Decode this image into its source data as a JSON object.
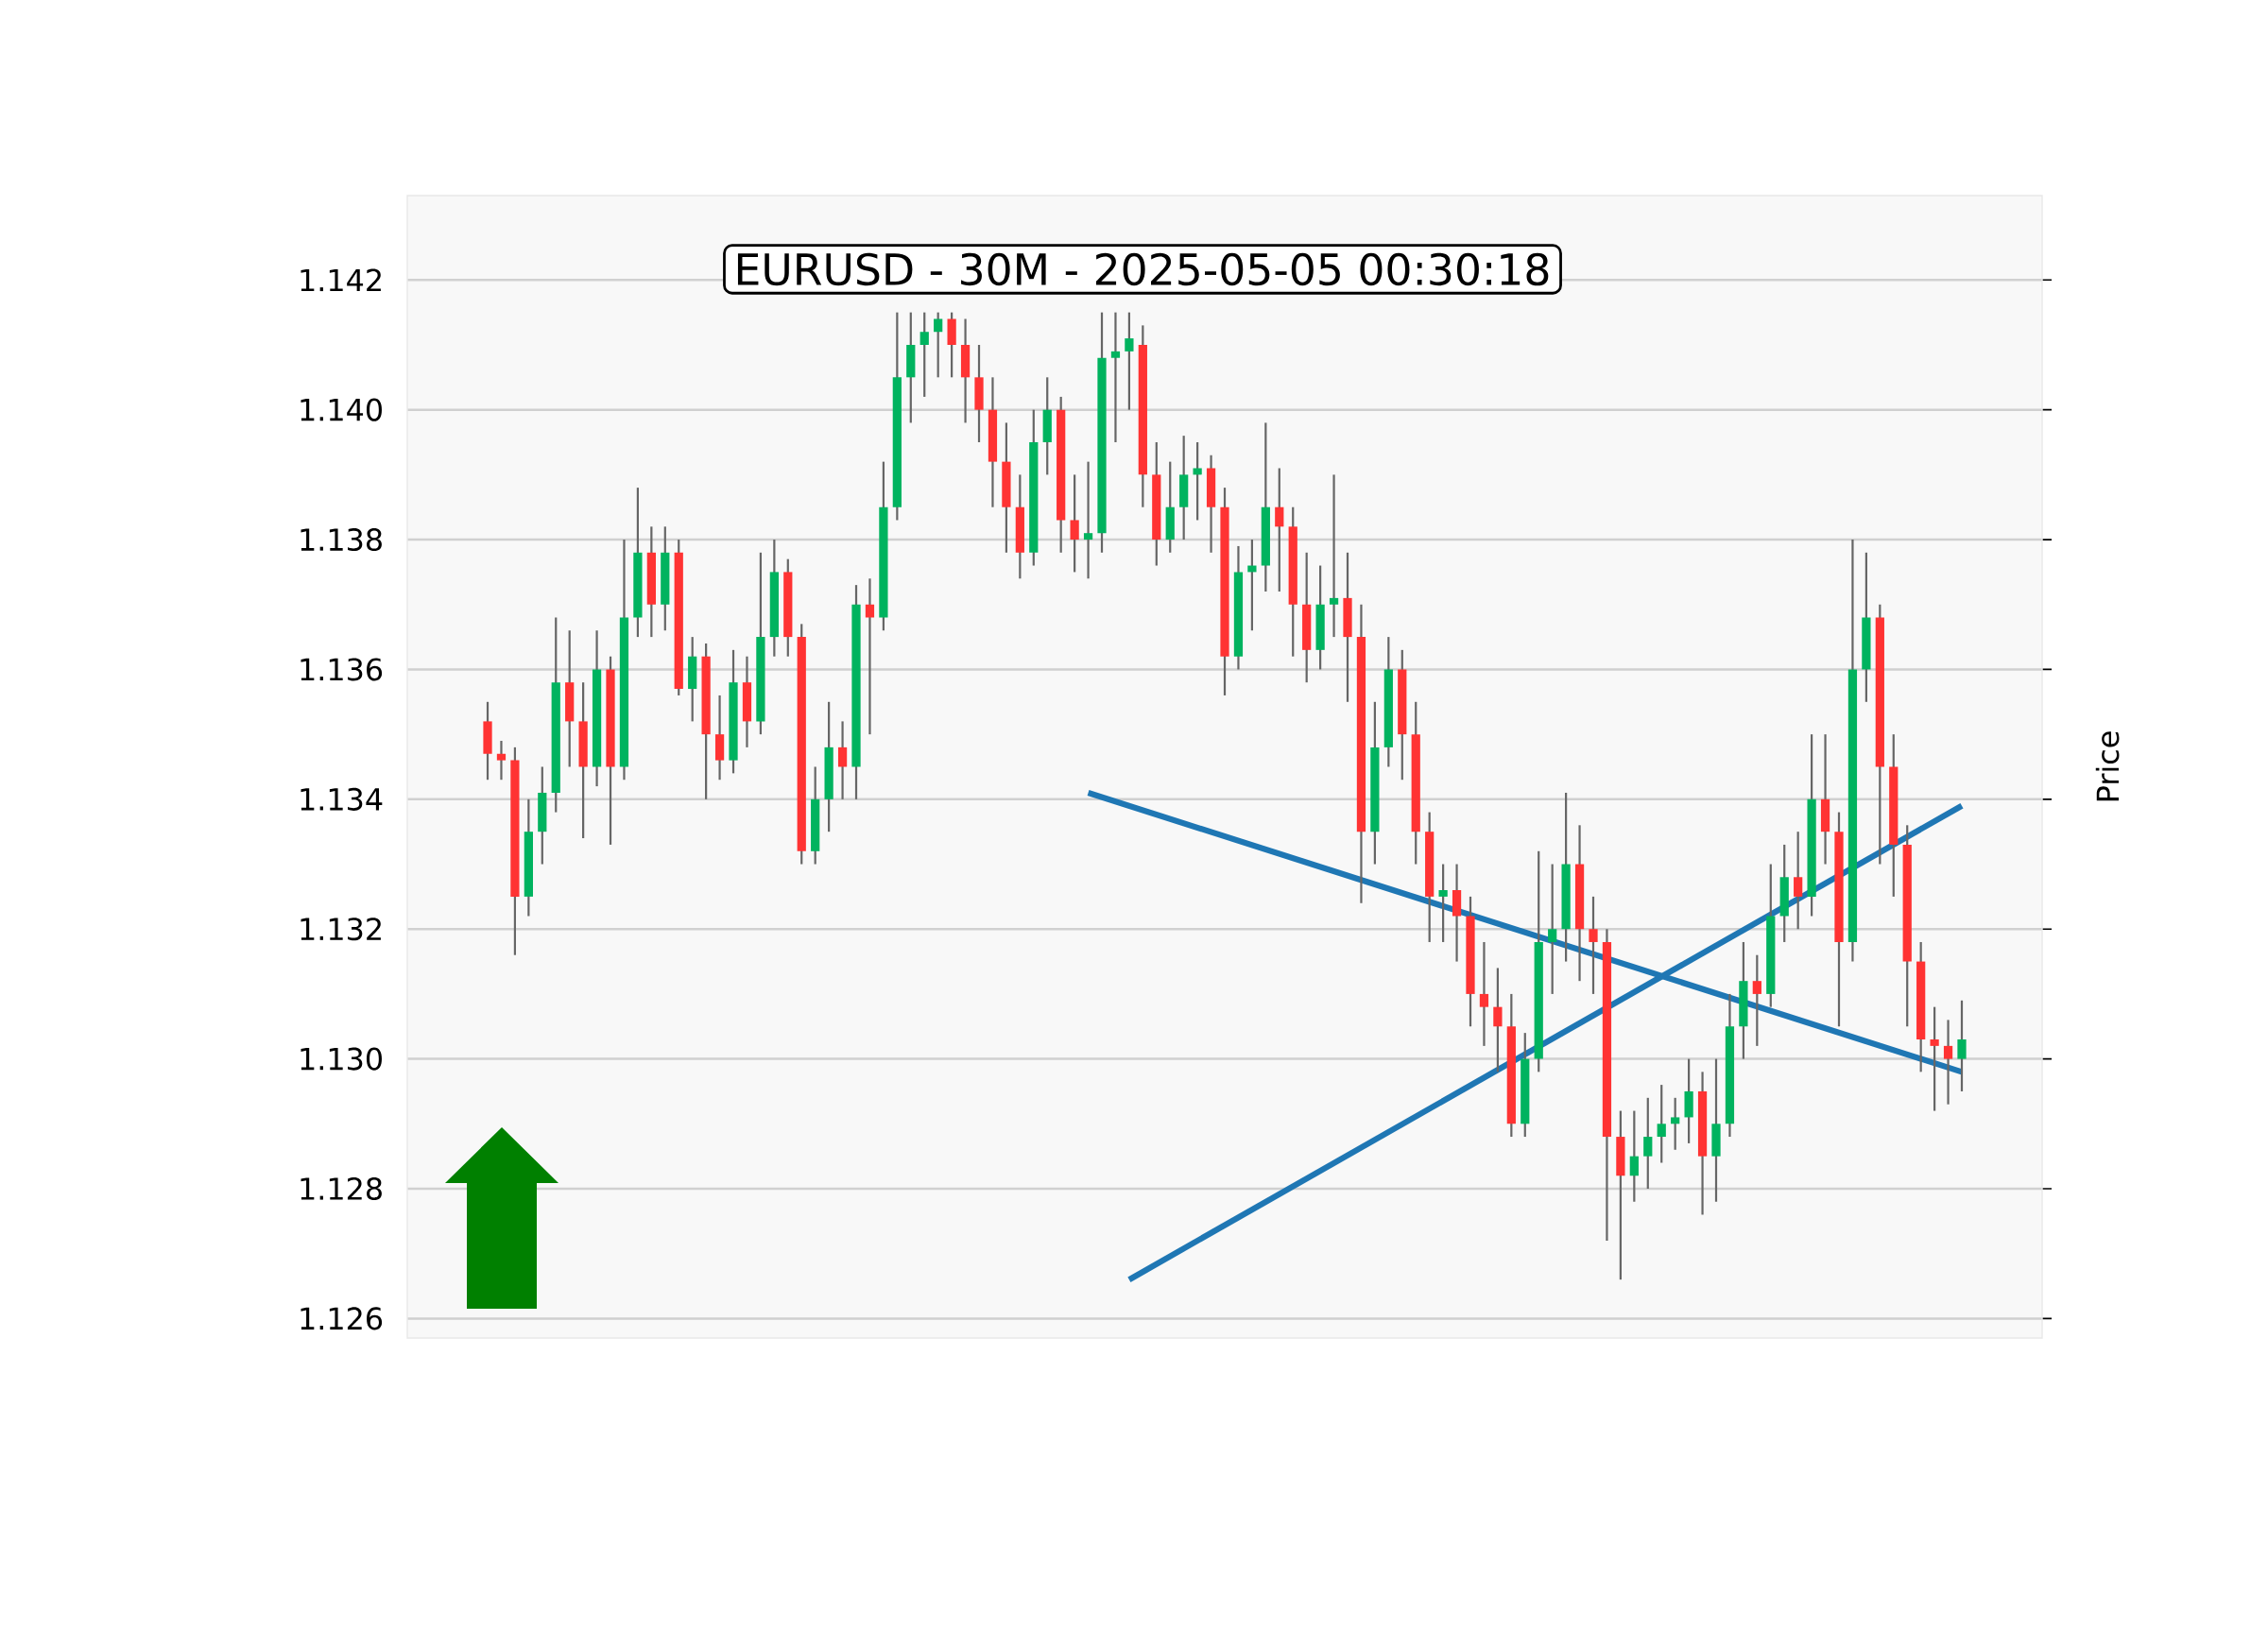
{
  "chart_data": {
    "type": "candlestick",
    "title": "EURUSD - 30M - 2025-05-05 00:30:18",
    "ylabel": "Price",
    "categories": [
      null,
      null,
      null,
      null,
      null,
      null,
      null,
      null,
      null,
      null,
      null,
      null,
      null,
      null,
      null,
      null,
      null,
      null,
      null,
      null,
      null,
      null,
      null,
      null,
      null,
      null,
      null,
      null,
      null,
      null,
      null,
      null,
      null,
      null,
      null,
      null,
      null,
      null,
      null,
      null,
      null,
      null,
      null,
      null,
      null,
      null,
      null,
      null,
      null,
      null,
      null,
      null,
      null,
      null,
      null,
      null,
      null,
      null,
      null,
      null,
      null,
      null,
      null,
      null,
      null,
      null,
      null,
      null,
      null,
      null,
      null,
      null,
      null,
      null,
      null,
      null,
      null,
      null,
      null,
      null,
      null,
      null,
      null,
      null,
      null,
      null,
      null,
      null,
      null,
      null,
      null,
      null,
      null,
      null,
      null,
      null,
      null,
      null,
      null,
      null,
      null,
      null,
      null,
      null,
      null,
      null,
      null,
      null,
      null
    ],
    "ohlc": [
      [
        1.1352,
        1.1355,
        1.1343,
        1.1347
      ],
      [
        1.1347,
        1.1349,
        1.1343,
        1.1346
      ],
      [
        1.1346,
        1.1348,
        1.1316,
        1.1325
      ],
      [
        1.1325,
        1.134,
        1.1322,
        1.1335
      ],
      [
        1.1335,
        1.1345,
        1.133,
        1.1341
      ],
      [
        1.1341,
        1.1368,
        1.1338,
        1.1358
      ],
      [
        1.1358,
        1.1366,
        1.1345,
        1.1352
      ],
      [
        1.1352,
        1.1358,
        1.1334,
        1.1345
      ],
      [
        1.1345,
        1.1366,
        1.1342,
        1.136
      ],
      [
        1.136,
        1.1362,
        1.1333,
        1.1345
      ],
      [
        1.1345,
        1.138,
        1.1343,
        1.1368
      ],
      [
        1.1368,
        1.1388,
        1.1365,
        1.1378
      ],
      [
        1.1378,
        1.1382,
        1.1365,
        1.137
      ],
      [
        1.137,
        1.1382,
        1.1366,
        1.1378
      ],
      [
        1.1378,
        1.138,
        1.1356,
        1.1357
      ],
      [
        1.1357,
        1.1365,
        1.1352,
        1.1362
      ],
      [
        1.1362,
        1.1364,
        1.134,
        1.135
      ],
      [
        1.135,
        1.1356,
        1.1343,
        1.1346
      ],
      [
        1.1346,
        1.1363,
        1.1344,
        1.1358
      ],
      [
        1.1358,
        1.1362,
        1.1348,
        1.1352
      ],
      [
        1.1352,
        1.1378,
        1.135,
        1.1365
      ],
      [
        1.1365,
        1.138,
        1.1362,
        1.1375
      ],
      [
        1.1375,
        1.1377,
        1.1362,
        1.1365
      ],
      [
        1.1365,
        1.1367,
        1.133,
        1.1332
      ],
      [
        1.1332,
        1.1345,
        1.133,
        1.134
      ],
      [
        1.134,
        1.1355,
        1.1335,
        1.1348
      ],
      [
        1.1348,
        1.1352,
        1.134,
        1.1345
      ],
      [
        1.1345,
        1.1373,
        1.134,
        1.137
      ],
      [
        1.137,
        1.1374,
        1.135,
        1.1368
      ],
      [
        1.1368,
        1.1392,
        1.1366,
        1.1385
      ],
      [
        1.1385,
        1.1415,
        1.1383,
        1.1405
      ],
      [
        1.1405,
        1.1415,
        1.1398,
        1.141
      ],
      [
        1.141,
        1.1415,
        1.1402,
        1.1412
      ],
      [
        1.1412,
        1.1415,
        1.1405,
        1.1414
      ],
      [
        1.1414,
        1.1415,
        1.1405,
        1.141
      ],
      [
        1.141,
        1.1414,
        1.1398,
        1.1405
      ],
      [
        1.1405,
        1.141,
        1.1395,
        1.14
      ],
      [
        1.14,
        1.1405,
        1.1385,
        1.1392
      ],
      [
        1.1392,
        1.1398,
        1.1378,
        1.1385
      ],
      [
        1.1385,
        1.139,
        1.1374,
        1.1378
      ],
      [
        1.1378,
        1.14,
        1.1376,
        1.1395
      ],
      [
        1.1395,
        1.1405,
        1.139,
        1.14
      ],
      [
        1.14,
        1.1402,
        1.1378,
        1.1383
      ],
      [
        1.1383,
        1.139,
        1.1375,
        1.138
      ],
      [
        1.138,
        1.1392,
        1.1374,
        1.1381
      ],
      [
        1.1381,
        1.1415,
        1.1378,
        1.1408
      ],
      [
        1.1408,
        1.1415,
        1.1395,
        1.1409
      ],
      [
        1.1409,
        1.1415,
        1.14,
        1.1411
      ],
      [
        1.141,
        1.1413,
        1.1385,
        1.139
      ],
      [
        1.139,
        1.1395,
        1.1376,
        1.138
      ],
      [
        1.138,
        1.1392,
        1.1378,
        1.1385
      ],
      [
        1.1385,
        1.1396,
        1.138,
        1.139
      ],
      [
        1.139,
        1.1395,
        1.1383,
        1.1391
      ],
      [
        1.1391,
        1.1393,
        1.1378,
        1.1385
      ],
      [
        1.1385,
        1.1388,
        1.1356,
        1.1362
      ],
      [
        1.1362,
        1.1379,
        1.136,
        1.1375
      ],
      [
        1.1375,
        1.138,
        1.1366,
        1.1376
      ],
      [
        1.1376,
        1.1398,
        1.1372,
        1.1385
      ],
      [
        1.1385,
        1.1391,
        1.1372,
        1.1382
      ],
      [
        1.1382,
        1.1385,
        1.1362,
        1.137
      ],
      [
        1.137,
        1.1378,
        1.1358,
        1.1363
      ],
      [
        1.1363,
        1.1376,
        1.136,
        1.137
      ],
      [
        1.137,
        1.139,
        1.1365,
        1.1371
      ],
      [
        1.1371,
        1.1378,
        1.1355,
        1.1365
      ],
      [
        1.1365,
        1.137,
        1.1324,
        1.1335
      ],
      [
        1.1335,
        1.1355,
        1.133,
        1.1348
      ],
      [
        1.1348,
        1.1365,
        1.1345,
        1.136
      ],
      [
        1.136,
        1.1363,
        1.1343,
        1.135
      ],
      [
        1.135,
        1.1355,
        1.133,
        1.1335
      ],
      [
        1.1335,
        1.1338,
        1.1318,
        1.1325
      ],
      [
        1.1325,
        1.133,
        1.1318,
        1.1326
      ],
      [
        1.1326,
        1.133,
        1.1315,
        1.1322
      ],
      [
        1.1322,
        1.1325,
        1.1305,
        1.131
      ],
      [
        1.131,
        1.1318,
        1.1302,
        1.1308
      ],
      [
        1.1308,
        1.1314,
        1.1298,
        1.1305
      ],
      [
        1.1305,
        1.131,
        1.1288,
        1.129
      ],
      [
        1.129,
        1.1304,
        1.1288,
        1.13
      ],
      [
        1.13,
        1.1332,
        1.1298,
        1.1318
      ],
      [
        1.1318,
        1.133,
        1.131,
        1.132
      ],
      [
        1.132,
        1.1341,
        1.1315,
        1.133
      ],
      [
        1.133,
        1.1336,
        1.1312,
        1.132
      ],
      [
        1.132,
        1.1325,
        1.131,
        1.1318
      ],
      [
        1.1318,
        1.132,
        1.1272,
        1.1288
      ],
      [
        1.1288,
        1.1292,
        1.1266,
        1.1282
      ],
      [
        1.1282,
        1.1292,
        1.1278,
        1.1285
      ],
      [
        1.1285,
        1.1294,
        1.128,
        1.1288
      ],
      [
        1.1288,
        1.1296,
        1.1284,
        1.129
      ],
      [
        1.129,
        1.1294,
        1.1286,
        1.1291
      ],
      [
        1.1291,
        1.13,
        1.1287,
        1.1295
      ],
      [
        1.1295,
        1.1298,
        1.1276,
        1.1285
      ],
      [
        1.1285,
        1.13,
        1.1278,
        1.129
      ],
      [
        1.129,
        1.131,
        1.1288,
        1.1305
      ],
      [
        1.1305,
        1.1318,
        1.13,
        1.1312
      ],
      [
        1.1312,
        1.1316,
        1.1302,
        1.131
      ],
      [
        1.131,
        1.133,
        1.1308,
        1.1322
      ],
      [
        1.1322,
        1.1333,
        1.1318,
        1.1328
      ],
      [
        1.1328,
        1.1335,
        1.132,
        1.1325
      ],
      [
        1.1325,
        1.135,
        1.1322,
        1.134
      ],
      [
        1.134,
        1.135,
        1.133,
        1.1335
      ],
      [
        1.1335,
        1.1338,
        1.1305,
        1.1318
      ],
      [
        1.1318,
        1.138,
        1.1315,
        1.136
      ],
      [
        1.136,
        1.1378,
        1.1355,
        1.1368
      ],
      [
        1.1368,
        1.137,
        1.133,
        1.1345
      ],
      [
        1.1345,
        1.135,
        1.1325,
        1.1333
      ],
      [
        1.1333,
        1.1336,
        1.1305,
        1.1315
      ],
      [
        1.1315,
        1.1318,
        1.1298,
        1.1303
      ],
      [
        1.1303,
        1.1308,
        1.1292,
        1.1302
      ],
      [
        1.1302,
        1.1306,
        1.1293,
        1.13
      ],
      [
        1.13,
        1.1309,
        1.1295,
        1.1303
      ]
    ],
    "series": [
      {
        "type": "line",
        "color": "#1f77b4",
        "values": [
          null,
          null,
          null,
          null,
          null,
          null,
          null,
          null,
          null,
          null,
          null,
          null,
          null,
          null,
          null,
          null,
          null,
          null,
          null,
          null,
          null,
          null,
          null,
          null,
          null,
          null,
          null,
          null,
          null,
          null,
          null,
          null,
          null,
          null,
          null,
          null,
          null,
          null,
          null,
          null,
          null,
          null,
          null,
          null,
          1.1341,
          null,
          null,
          null,
          null,
          null,
          null,
          null,
          null,
          null,
          null,
          null,
          null,
          null,
          null,
          null,
          null,
          null,
          null,
          null,
          null,
          null,
          null,
          null,
          null,
          null,
          null,
          null,
          null,
          null,
          null,
          null,
          null,
          null,
          null,
          null,
          null,
          null,
          null,
          null,
          null,
          null,
          null,
          null,
          null,
          null,
          null,
          null,
          null,
          null,
          null,
          null,
          null,
          null,
          null,
          null,
          null,
          null,
          null,
          null,
          null,
          null,
          null,
          null,
          1.1298
        ]
      },
      {
        "type": "line",
        "color": "#1f77b4",
        "values": [
          null,
          null,
          null,
          null,
          null,
          null,
          null,
          null,
          null,
          null,
          null,
          null,
          null,
          null,
          null,
          null,
          null,
          null,
          null,
          null,
          null,
          null,
          null,
          null,
          null,
          null,
          null,
          null,
          null,
          null,
          null,
          null,
          null,
          null,
          null,
          null,
          null,
          null,
          null,
          null,
          null,
          null,
          null,
          null,
          null,
          null,
          null,
          1.1266,
          null,
          null,
          null,
          null,
          null,
          null,
          null,
          null,
          null,
          null,
          null,
          null,
          null,
          null,
          null,
          null,
          null,
          null,
          null,
          null,
          null,
          null,
          null,
          null,
          null,
          null,
          null,
          null,
          null,
          null,
          null,
          null,
          null,
          null,
          null,
          null,
          null,
          null,
          null,
          null,
          null,
          null,
          null,
          null,
          null,
          null,
          null,
          null,
          null,
          null,
          null,
          null,
          null,
          null,
          null,
          null,
          null,
          null,
          null,
          null,
          1.1339
        ]
      }
    ],
    "ylim": [
      1.1257,
      1.1433
    ],
    "yticks": [
      1.126,
      1.128,
      {
        "value": 1.13,
        "label": "1.130"
      },
      1.132,
      1.134,
      1.136,
      1.138,
      {
        "value": 1.14,
        "label": "1.140"
      },
      1.142
    ],
    "grid": "y"
  }
}
